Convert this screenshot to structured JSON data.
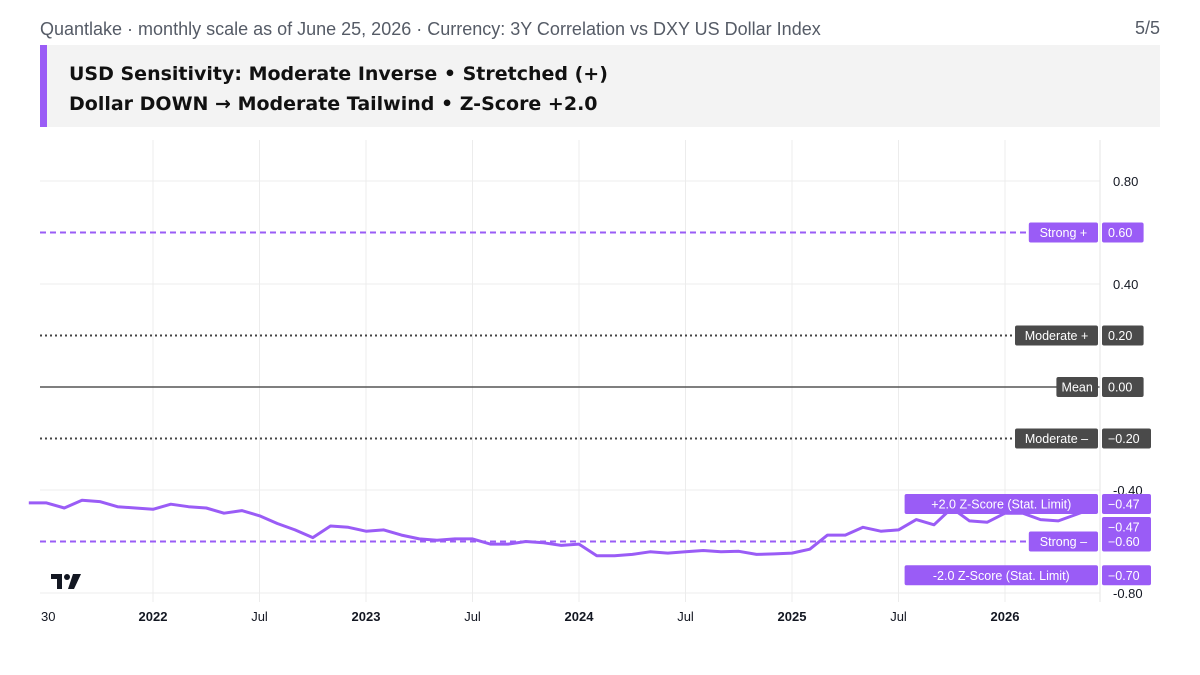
{
  "header": {
    "title": "Quantlake · monthly scale as of June 25, 2026 · Currency: 3Y Correlation vs DXY US Dollar Index",
    "page_indicator": "5/5"
  },
  "banner": {
    "line1": "USD Sensitivity: Moderate Inverse • Stretched (+)",
    "line2": "Dollar DOWN → Moderate Tailwind • Z-Score +2.0"
  },
  "colors": {
    "accent": "#9a5cf6",
    "series": "#9a5cf6",
    "label_dark": "#4a4a4a",
    "mean_line": "#555555"
  },
  "chart_data": {
    "type": "line",
    "title": "",
    "xlabel": "",
    "ylabel": "",
    "ylim": [
      -0.8,
      0.8
    ],
    "y_ticks": [
      "0.80",
      "0.40",
      "-0.40",
      "-0.80"
    ],
    "x_ticks": [
      {
        "label": "30",
        "month": "2021-06",
        "bold": false
      },
      {
        "label": "2022",
        "month": "2022-01",
        "bold": true
      },
      {
        "label": "Jul",
        "month": "2022-07",
        "bold": false
      },
      {
        "label": "2023",
        "month": "2023-01",
        "bold": true
      },
      {
        "label": "Jul",
        "month": "2023-07",
        "bold": false
      },
      {
        "label": "2024",
        "month": "2024-01",
        "bold": true
      },
      {
        "label": "Jul",
        "month": "2024-07",
        "bold": false
      },
      {
        "label": "2025",
        "month": "2025-01",
        "bold": true
      },
      {
        "label": "Jul",
        "month": "2025-07",
        "bold": false
      },
      {
        "label": "2026",
        "month": "2026-01",
        "bold": true
      }
    ],
    "reference_lines": [
      {
        "name": "Strong +",
        "value": 0.6,
        "value_label": "0.60",
        "style": "dashed",
        "color": "#9a5cf6",
        "tag_color": "#9a5cf6"
      },
      {
        "name": "Moderate +",
        "value": 0.2,
        "value_label": "0.20",
        "style": "dotted",
        "color": "#444444",
        "tag_color": "#4a4a4a"
      },
      {
        "name": "Mean",
        "value": 0.0,
        "value_label": "0.00",
        "style": "solid",
        "color": "#555555",
        "tag_color": "#4a4a4a"
      },
      {
        "name": "Moderate –",
        "value": -0.2,
        "value_label": "−0.20",
        "style": "dotted",
        "color": "#444444",
        "tag_color": "#4a4a4a"
      },
      {
        "name": "Strong –",
        "value": -0.6,
        "value_label": "−0.60",
        "style": "dashed",
        "color": "#9a5cf6",
        "tag_color": "#9a5cf6"
      }
    ],
    "zscore_labels": [
      {
        "name": "+2.0 Z-Score (Stat. Limit)",
        "value": -0.47,
        "value_label": "−0.47"
      },
      {
        "name": "-2.0 Z-Score (Stat. Limit)",
        "value": -0.7,
        "value_label": "−0.70"
      }
    ],
    "last_value_label": "−0.47",
    "series": [
      {
        "values": [
          {
            "x": "2021-06",
            "y": -0.45
          },
          {
            "x": "2021-07",
            "y": -0.45
          },
          {
            "x": "2021-08",
            "y": -0.47
          },
          {
            "x": "2021-09",
            "y": -0.44
          },
          {
            "x": "2021-10",
            "y": -0.445
          },
          {
            "x": "2021-11",
            "y": -0.465
          },
          {
            "x": "2021-12",
            "y": -0.47
          },
          {
            "x": "2022-01",
            "y": -0.475
          },
          {
            "x": "2022-02",
            "y": -0.455
          },
          {
            "x": "2022-03",
            "y": -0.465
          },
          {
            "x": "2022-04",
            "y": -0.47
          },
          {
            "x": "2022-05",
            "y": -0.49
          },
          {
            "x": "2022-06",
            "y": -0.48
          },
          {
            "x": "2022-07",
            "y": -0.5
          },
          {
            "x": "2022-08",
            "y": -0.53
          },
          {
            "x": "2022-09",
            "y": -0.555
          },
          {
            "x": "2022-10",
            "y": -0.585
          },
          {
            "x": "2022-11",
            "y": -0.54
          },
          {
            "x": "2022-12",
            "y": -0.545
          },
          {
            "x": "2023-01",
            "y": -0.56
          },
          {
            "x": "2023-02",
            "y": -0.555
          },
          {
            "x": "2023-03",
            "y": -0.575
          },
          {
            "x": "2023-04",
            "y": -0.59
          },
          {
            "x": "2023-05",
            "y": -0.595
          },
          {
            "x": "2023-06",
            "y": -0.59
          },
          {
            "x": "2023-07",
            "y": -0.59
          },
          {
            "x": "2023-08",
            "y": -0.61
          },
          {
            "x": "2023-09",
            "y": -0.61
          },
          {
            "x": "2023-10",
            "y": -0.6
          },
          {
            "x": "2023-11",
            "y": -0.605
          },
          {
            "x": "2023-12",
            "y": -0.615
          },
          {
            "x": "2024-01",
            "y": -0.61
          },
          {
            "x": "2024-02",
            "y": -0.655
          },
          {
            "x": "2024-03",
            "y": -0.655
          },
          {
            "x": "2024-04",
            "y": -0.65
          },
          {
            "x": "2024-05",
            "y": -0.64
          },
          {
            "x": "2024-06",
            "y": -0.645
          },
          {
            "x": "2024-07",
            "y": -0.64
          },
          {
            "x": "2024-08",
            "y": -0.635
          },
          {
            "x": "2024-09",
            "y": -0.64
          },
          {
            "x": "2024-10",
            "y": -0.638
          },
          {
            "x": "2024-11",
            "y": -0.65
          },
          {
            "x": "2024-12",
            "y": -0.648
          },
          {
            "x": "2025-01",
            "y": -0.645
          },
          {
            "x": "2025-02",
            "y": -0.63
          },
          {
            "x": "2025-03",
            "y": -0.575
          },
          {
            "x": "2025-04",
            "y": -0.575
          },
          {
            "x": "2025-05",
            "y": -0.545
          },
          {
            "x": "2025-06",
            "y": -0.56
          },
          {
            "x": "2025-07",
            "y": -0.555
          },
          {
            "x": "2025-08",
            "y": -0.515
          },
          {
            "x": "2025-09",
            "y": -0.535
          },
          {
            "x": "2025-10",
            "y": -0.47
          },
          {
            "x": "2025-11",
            "y": -0.52
          },
          {
            "x": "2025-12",
            "y": -0.525
          },
          {
            "x": "2026-01",
            "y": -0.49
          },
          {
            "x": "2026-02",
            "y": -0.49
          },
          {
            "x": "2026-03",
            "y": -0.515
          },
          {
            "x": "2026-04",
            "y": -0.52
          },
          {
            "x": "2026-05",
            "y": -0.495
          },
          {
            "x": "2026-06",
            "y": -0.47
          }
        ]
      }
    ]
  }
}
